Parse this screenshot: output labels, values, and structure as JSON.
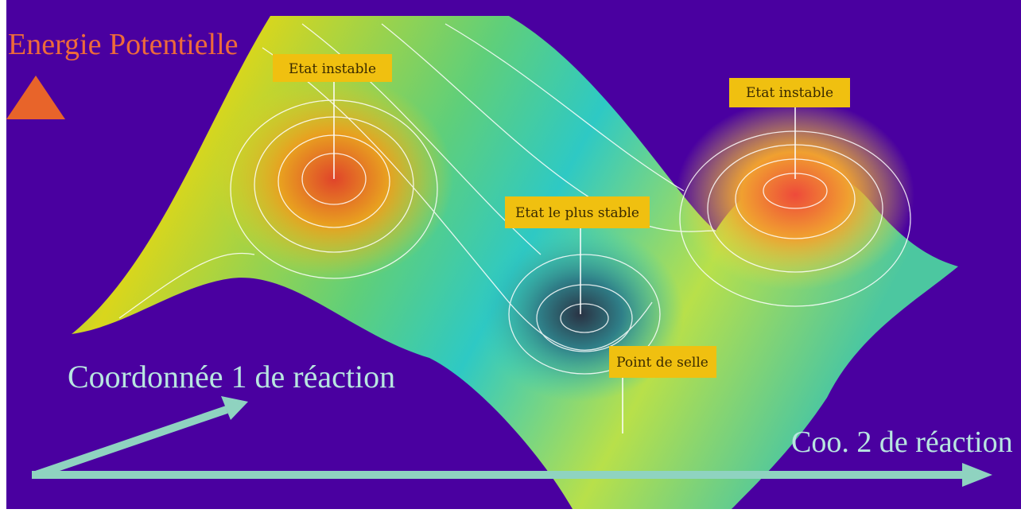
{
  "axes": {
    "y_label": "Energie Potentielle",
    "x1_label": "Coordonnée 1 de réaction",
    "x2_label": "Coo. 2 de réaction"
  },
  "annotations": [
    {
      "label": "Etat instable"
    },
    {
      "label": "Etat instable"
    },
    {
      "label": "Etat le plus stable"
    },
    {
      "label": "Point de selle"
    }
  ]
}
